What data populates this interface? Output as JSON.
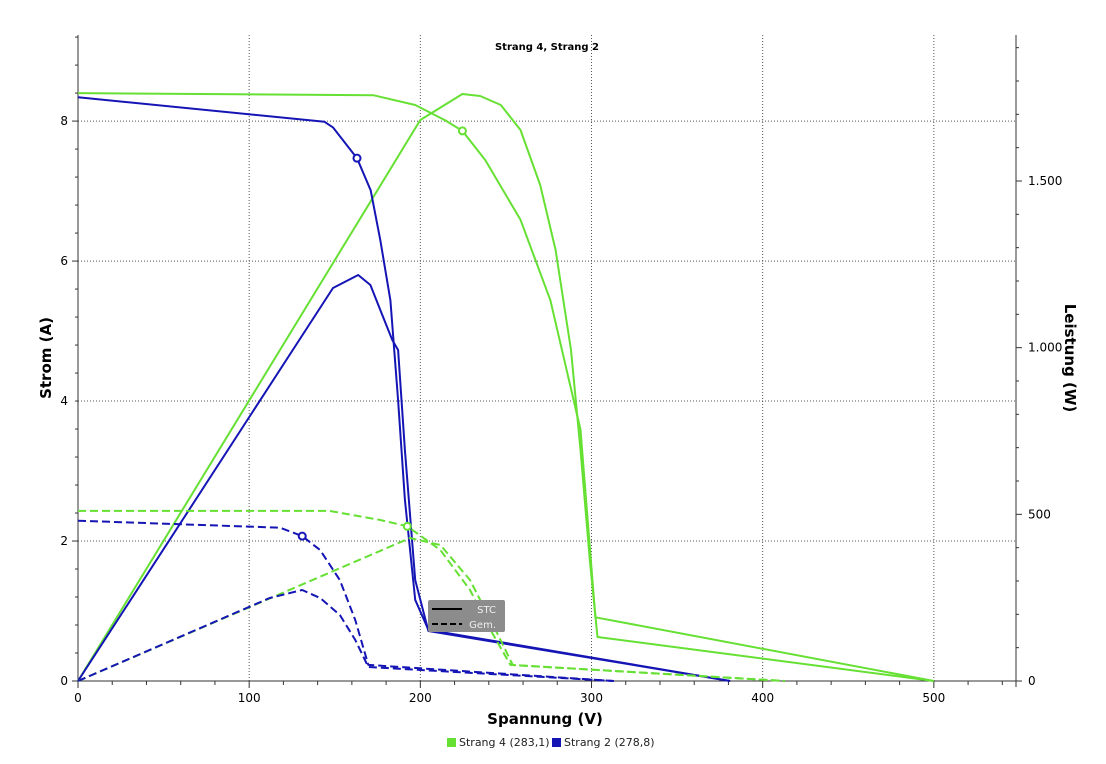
{
  "chart_data": {
    "type": "line",
    "title": "Strang 4, Strang 2",
    "xlabel": "Spannung (V)",
    "ylabel": "Strom (A)",
    "y2label": "Leistung (W)",
    "xlim": [
      0,
      548
    ],
    "ylim": [
      0,
      9.23
    ],
    "y2lim": [
      0,
      1938
    ],
    "xticks": [
      {
        "v": 0,
        "label": "0"
      },
      {
        "v": 100,
        "label": "100"
      },
      {
        "v": 200,
        "label": "200"
      },
      {
        "v": 300,
        "label": "300"
      },
      {
        "v": 400,
        "label": "400"
      },
      {
        "v": 500,
        "label": "500"
      }
    ],
    "yticks": [
      {
        "v": 0,
        "label": "0"
      },
      {
        "v": 2,
        "label": "2"
      },
      {
        "v": 4,
        "label": "4"
      },
      {
        "v": 6,
        "label": "6"
      },
      {
        "v": 8,
        "label": "8"
      }
    ],
    "y2ticks": [
      {
        "v": 0,
        "label": "0"
      },
      {
        "v": 500,
        "label": "500"
      },
      {
        "v": 1000,
        "label": "1.000"
      },
      {
        "v": 1500,
        "label": "1.500"
      }
    ],
    "grid": true,
    "line_styles": [
      {
        "label": "STC",
        "dash": "solid"
      },
      {
        "label": "Gem.",
        "dash": "dashed"
      }
    ],
    "legend": [
      {
        "name": "Strang 4 (283,1)",
        "color": "#66e033"
      },
      {
        "name": "Strang 2 (278,8)",
        "color": "#1515b5"
      }
    ],
    "series": [
      {
        "string": "Strang 4",
        "style": "STC",
        "kind": "current",
        "axis": "left",
        "color": "#66e033",
        "x": [
          0,
          172.5,
          197,
          214.6,
          224.6,
          238,
          258.5,
          276,
          293.6,
          302.3,
          500
        ],
        "y": [
          8.4,
          8.37,
          8.23,
          8.01,
          7.86,
          7.44,
          6.59,
          5.44,
          3.59,
          0.91,
          0
        ],
        "mpp": [
          224.6,
          7.86
        ]
      },
      {
        "string": "Strang 4",
        "style": "STC",
        "kind": "power",
        "axis": "right",
        "color": "#66e033",
        "x": [
          0,
          200,
          224.6,
          235,
          247,
          258.5,
          270,
          279,
          288,
          293.6,
          299,
          303.5,
          500
        ],
        "y": [
          0,
          1683,
          1761,
          1755,
          1728,
          1653,
          1488,
          1293,
          993,
          693,
          363,
          132,
          0
        ]
      },
      {
        "string": "Strang 2",
        "style": "STC",
        "kind": "current",
        "axis": "left",
        "color": "#1515b5",
        "x": [
          0,
          144,
          149,
          163,
          171,
          176.6,
          182.5,
          187,
          191,
          197,
          204.7,
          381
        ],
        "y": [
          8.34,
          7.99,
          7.91,
          7.47,
          7.01,
          6.3,
          5.44,
          4.01,
          2.59,
          1.16,
          0.73,
          0
        ],
        "mpp": [
          163,
          7.47
        ]
      },
      {
        "string": "Strang 2",
        "style": "STC",
        "kind": "power",
        "axis": "right",
        "color": "#1515b5",
        "x": [
          0,
          149,
          163.7,
          170.8,
          176.6,
          183.6,
          187,
          191,
          197,
          204.7,
          381
        ],
        "y": [
          0,
          1179,
          1218,
          1188,
          1113,
          1023,
          993,
          693,
          303,
          150,
          0
        ]
      },
      {
        "string": "Strang 4",
        "style": "Gem.",
        "kind": "current",
        "axis": "left",
        "color": "#66e033",
        "x": [
          0,
          147,
          176.6,
          192.4,
          211.7,
          229,
          241,
          252.6,
          413
        ],
        "y": [
          2.43,
          2.43,
          2.3,
          2.21,
          1.87,
          1.3,
          0.73,
          0.23,
          0
        ],
        "mpp": [
          192.4,
          2.21
        ]
      },
      {
        "string": "Strang 4",
        "style": "Gem.",
        "kind": "power",
        "axis": "right",
        "color": "#66e033",
        "x": [
          0,
          194,
          211.7,
          229,
          244,
          254,
          413
        ],
        "y": [
          0,
          429,
          408,
          303,
          153,
          48,
          0
        ]
      },
      {
        "string": "Strang 2",
        "style": "Gem.",
        "kind": "current",
        "axis": "left",
        "color": "#1515b5",
        "x": [
          0,
          118,
          131,
          141.5,
          153,
          162,
          169.6,
          313
        ],
        "y": [
          2.29,
          2.19,
          2.07,
          1.87,
          1.44,
          0.87,
          0.23,
          0
        ],
        "mpp": [
          131,
          2.07
        ]
      },
      {
        "string": "Strang 2",
        "style": "Gem.",
        "kind": "power",
        "axis": "right",
        "color": "#1515b5",
        "x": [
          0,
          112,
          131,
          141.5,
          153,
          162,
          169.6,
          313
        ],
        "y": [
          0,
          249,
          273,
          249,
          198,
          123,
          42,
          0
        ]
      }
    ]
  }
}
